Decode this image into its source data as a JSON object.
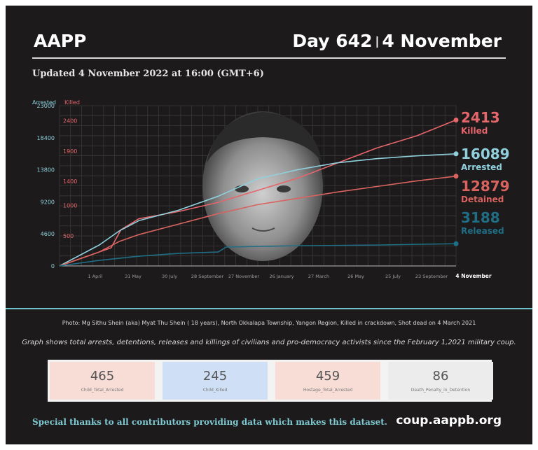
{
  "header": {
    "org": "AAPP",
    "day": "Day 642",
    "separator": "|",
    "date": "4 November"
  },
  "updated": "Updated 4 November 2022 at 16:00 (GMT+6)",
  "colors": {
    "killed": "#e5666b",
    "arrested": "#8fd0dc",
    "detained": "#d9635f",
    "released": "#1f6e86",
    "background": "#1c1a1b",
    "accent": "#6ec2cc"
  },
  "chart_data": {
    "type": "line",
    "left_axis": {
      "label": "Arrested",
      "ticks": [
        "23000",
        "18400",
        "13800",
        "9200",
        "4600",
        "0"
      ],
      "ylim": [
        0,
        23000
      ]
    },
    "right_axis": {
      "label": "Killed",
      "ticks": [
        "2400",
        "1900",
        "1400",
        "1000",
        "500"
      ],
      "ylim": [
        0,
        2650
      ]
    },
    "x_ticks": [
      "1 April",
      "31 May",
      "30 July",
      "28 September",
      "27 November",
      "26 January",
      "27 March",
      "26 May",
      "25 July",
      "23 September",
      "4 November"
    ],
    "series": [
      {
        "name": "Killed",
        "axis": "right",
        "final": 2413,
        "label_value": "2413",
        "x": [
          0,
          1.3,
          1.55,
          1.8,
          2,
          3,
          4,
          5,
          6,
          7,
          8,
          9,
          10
        ],
        "values": [
          0,
          300,
          600,
          700,
          780,
          900,
          1050,
          1250,
          1450,
          1700,
          1950,
          2150,
          2413
        ]
      },
      {
        "name": "Arrested",
        "axis": "left",
        "final": 16089,
        "label_value": "16089",
        "x": [
          0,
          1,
          1.5,
          2,
          3,
          4,
          5,
          6,
          7,
          8,
          9,
          10
        ],
        "values": [
          0,
          3000,
          5000,
          6500,
          8000,
          10000,
          12500,
          13800,
          14800,
          15400,
          15800,
          16089
        ]
      },
      {
        "name": "Detained",
        "axis": "left",
        "final": 12879,
        "label_value": "12879",
        "x": [
          0,
          1,
          1.5,
          2,
          3,
          4,
          5,
          6,
          7,
          8,
          9,
          10
        ],
        "values": [
          0,
          2000,
          3500,
          4500,
          6000,
          7500,
          8800,
          9700,
          10600,
          11400,
          12200,
          12879
        ]
      },
      {
        "name": "Released",
        "axis": "left",
        "final": 3188,
        "label_value": "3188",
        "x": [
          0,
          1,
          2,
          3,
          4,
          4.2,
          5,
          6,
          7,
          8,
          9,
          10
        ],
        "values": [
          0,
          800,
          1400,
          1800,
          2000,
          2700,
          2800,
          2900,
          2950,
          3000,
          3100,
          3188
        ]
      }
    ]
  },
  "photo": {
    "caption": "Photo: Mg Sithu Shein (aka) Myat Thu Shein ( 18 years), North Okkalapa Township, Yangon Region, Killed in crackdown, Shot dead on 4 March 2021"
  },
  "description": "Graph shows total arrests, detentions, releases and killings of civilians and pro-democracy activists since the February 1,2021 military coup.",
  "stats": [
    {
      "value": "465",
      "label": "Child_Total_Arrested",
      "color": "#f8ddd6"
    },
    {
      "value": "245",
      "label": "Child_Killed",
      "color": "#cfe0f6"
    },
    {
      "value": "459",
      "label": "Hostage_Total_Arrested",
      "color": "#f8ddd6"
    },
    {
      "value": "86",
      "label": "Death_Penalty_in_Detention",
      "color": "#ececec"
    }
  ],
  "footer": {
    "thanks": "Special thanks to all contributors providing data which makes this dataset.",
    "site": "coup.aappb.org"
  }
}
